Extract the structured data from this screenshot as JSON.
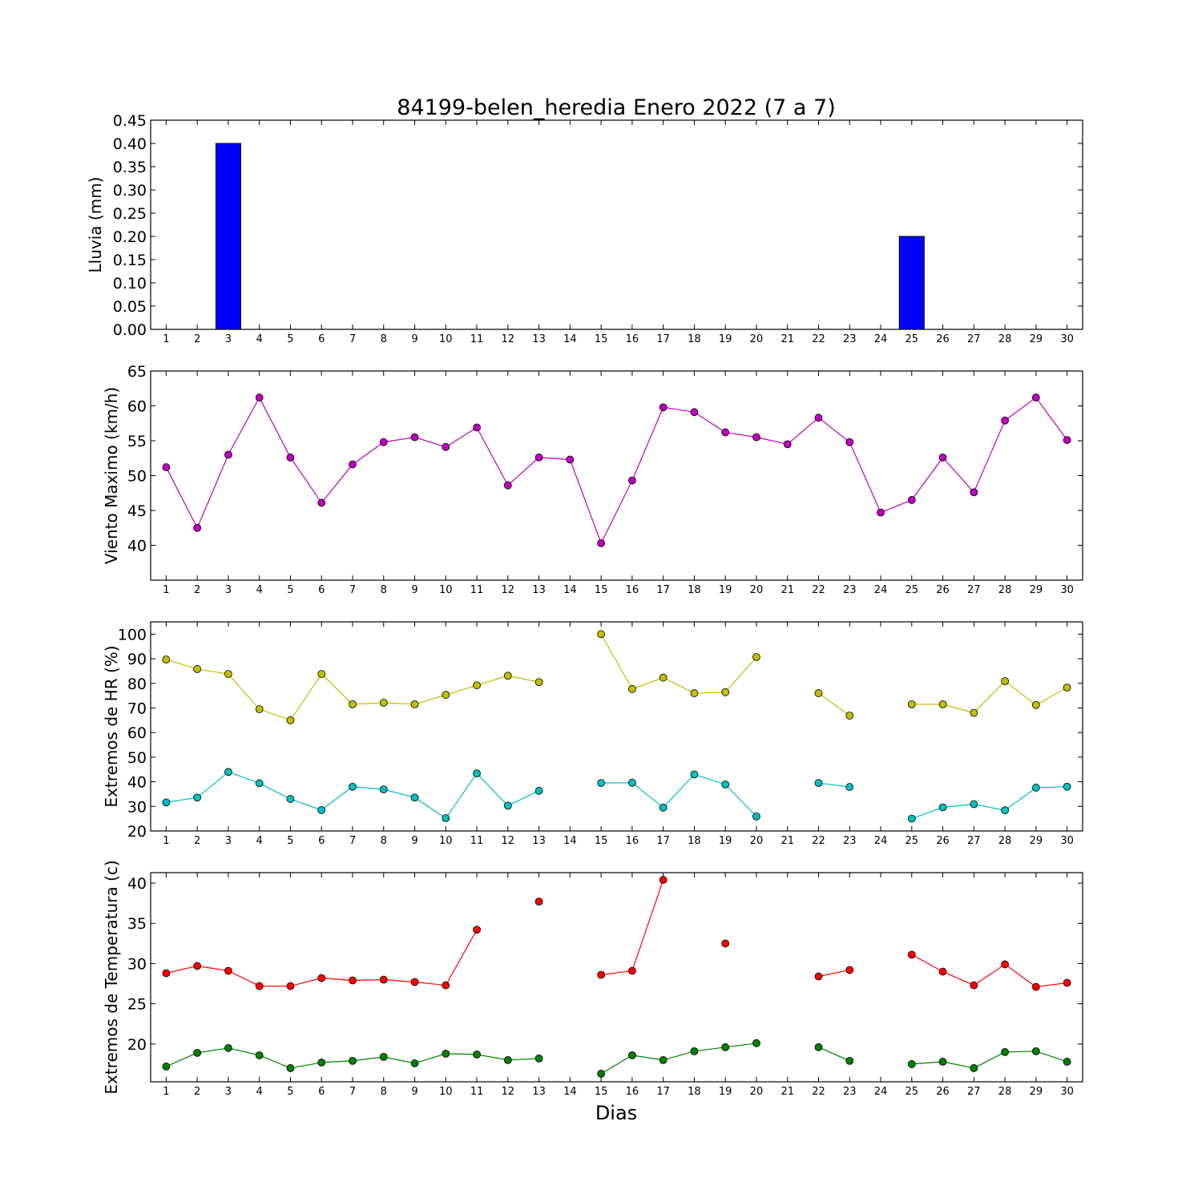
{
  "title": "84199-belen_heredia Enero 2022  (7 a 7)",
  "xlabel": "Dias",
  "chart_data": [
    {
      "type": "bar",
      "ylabel": "Lluvia (mm)",
      "categories": [
        1,
        2,
        3,
        4,
        5,
        6,
        7,
        8,
        9,
        10,
        11,
        12,
        13,
        14,
        15,
        16,
        17,
        18,
        19,
        20,
        21,
        22,
        23,
        24,
        25,
        26,
        27,
        28,
        29,
        30
      ],
      "ylim": [
        0,
        0.45
      ],
      "yticks": [
        "0.00",
        "0.05",
        "0.10",
        "0.15",
        "0.20",
        "0.25",
        "0.30",
        "0.35",
        "0.40",
        "0.45"
      ],
      "series": [
        {
          "color": "#0000ff",
          "values": [
            0,
            0,
            0.4,
            0,
            0,
            0,
            0,
            0,
            0,
            0,
            0,
            0,
            0,
            0,
            0,
            0,
            0,
            0,
            0,
            0,
            0,
            0,
            0,
            0,
            0.2,
            0,
            0,
            0,
            0,
            0
          ]
        }
      ]
    },
    {
      "type": "line",
      "ylabel": "Viento Maximo (km/h)",
      "categories": [
        1,
        2,
        3,
        4,
        5,
        6,
        7,
        8,
        9,
        10,
        11,
        12,
        13,
        14,
        15,
        16,
        17,
        18,
        19,
        20,
        21,
        22,
        23,
        24,
        25,
        26,
        27,
        28,
        29,
        30
      ],
      "ylim": [
        35,
        65
      ],
      "yticks": [
        "40",
        "45",
        "50",
        "55",
        "60",
        "65"
      ],
      "series": [
        {
          "color": "#bf00bf",
          "values": [
            51.2,
            42.5,
            53,
            61.2,
            52.6,
            46.1,
            51.6,
            54.8,
            55.5,
            54.1,
            56.9,
            48.6,
            52.6,
            52.3,
            40.3,
            49.3,
            59.8,
            59.1,
            56.2,
            55.5,
            54.5,
            58.3,
            54.8,
            44.7,
            46.5,
            52.6,
            47.6,
            57.9,
            61.2,
            55.1
          ]
        }
      ]
    },
    {
      "type": "line",
      "ylabel": "Extremos de HR (%)",
      "categories": [
        1,
        2,
        3,
        4,
        5,
        6,
        7,
        8,
        9,
        10,
        11,
        12,
        13,
        14,
        15,
        16,
        17,
        18,
        19,
        20,
        21,
        22,
        23,
        24,
        25,
        26,
        27,
        28,
        29,
        30
      ],
      "ylim": [
        20,
        105
      ],
      "yticks": [
        "20",
        "30",
        "40",
        "50",
        "60",
        "70",
        "80",
        "90",
        "100"
      ],
      "series": [
        {
          "color": "#bfbf00",
          "values": [
            89.7,
            85.8,
            83.8,
            69.5,
            65,
            83.8,
            71.5,
            72.1,
            71.5,
            75.3,
            79.2,
            83.1,
            80.5,
            null,
            100,
            77.7,
            82.3,
            76,
            76.4,
            90.7,
            null,
            76,
            66.9,
            null,
            71.5,
            71.5,
            68,
            80.9,
            71.2,
            78.3
          ]
        },
        {
          "color": "#00bfbf",
          "values": [
            31.6,
            33.6,
            44,
            39.4,
            33,
            28.5,
            38,
            36.9,
            33.6,
            25.2,
            43.4,
            30.3,
            36.3,
            null,
            39.5,
            39.6,
            29.5,
            43,
            38.9,
            25.9,
            null,
            39.5,
            37.9,
            null,
            25,
            29.6,
            30.9,
            28.4,
            37.6,
            38
          ]
        }
      ]
    },
    {
      "type": "line",
      "ylabel": "Extremos de Temperatura (c)",
      "categories": [
        1,
        2,
        3,
        4,
        5,
        6,
        7,
        8,
        9,
        10,
        11,
        12,
        13,
        14,
        15,
        16,
        17,
        18,
        19,
        20,
        21,
        22,
        23,
        24,
        25,
        26,
        27,
        28,
        29,
        30
      ],
      "ylim": [
        15.3,
        41.3
      ],
      "yticks": [
        "20",
        "25",
        "30",
        "35",
        "40"
      ],
      "series": [
        {
          "color": "#ff0000",
          "values": [
            28.8,
            29.7,
            29.1,
            27.2,
            27.2,
            28.2,
            27.9,
            28,
            27.7,
            27.3,
            34.2,
            null,
            37.7,
            null,
            28.6,
            29.1,
            40.4,
            null,
            32.5,
            null,
            null,
            28.4,
            29.2,
            null,
            31.1,
            29,
            27.3,
            29.9,
            27.1,
            27.6
          ]
        },
        {
          "color": "#008000",
          "values": [
            17.2,
            18.9,
            19.5,
            18.6,
            17,
            17.7,
            17.9,
            18.4,
            17.6,
            18.8,
            18.7,
            18,
            18.2,
            null,
            16.3,
            18.6,
            18,
            19.1,
            19.6,
            20.1,
            null,
            19.6,
            17.9,
            null,
            17.5,
            17.8,
            17,
            19,
            19.1,
            17.8
          ]
        }
      ]
    }
  ]
}
